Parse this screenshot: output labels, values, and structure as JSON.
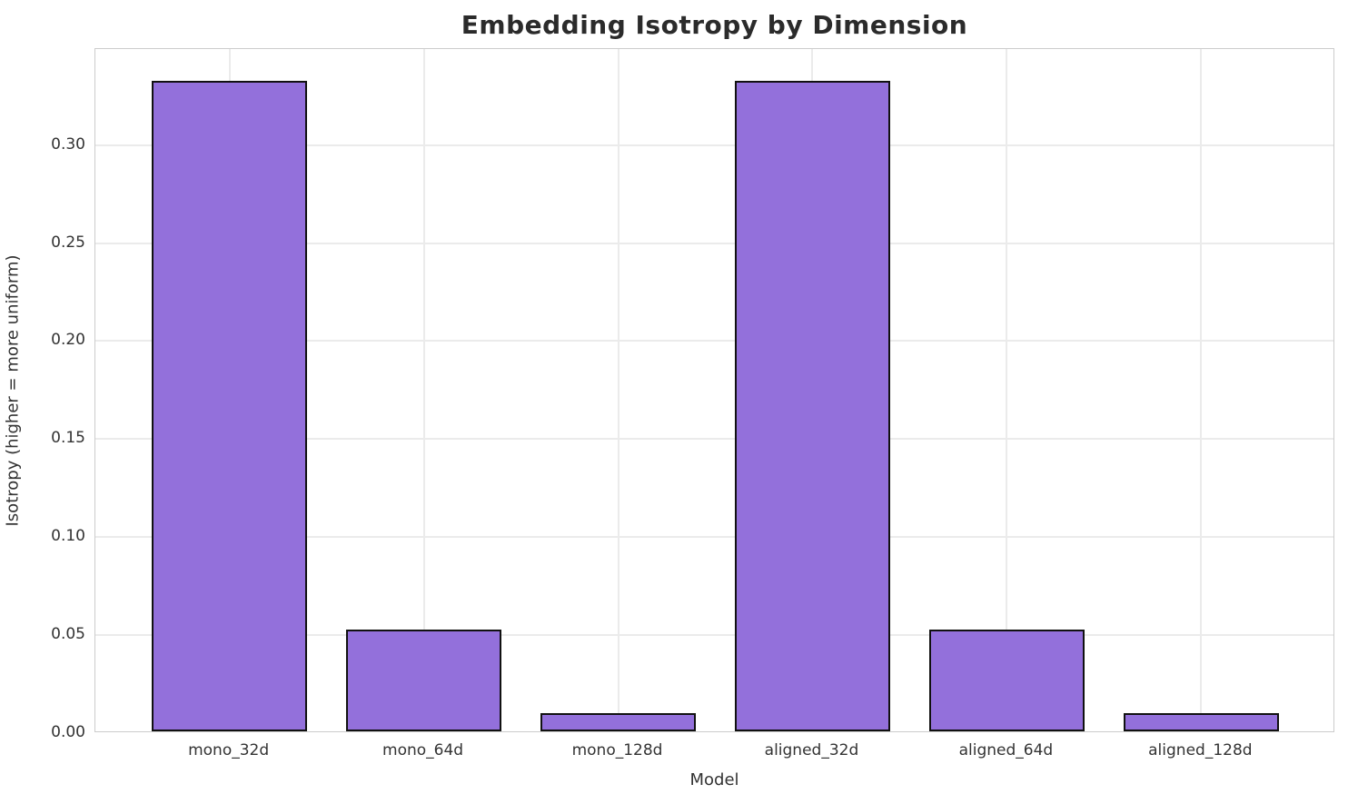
{
  "chart_data": {
    "type": "bar",
    "title": "Embedding Isotropy by Dimension",
    "xlabel": "Model",
    "ylabel": "Isotropy (higher = more uniform)",
    "categories": [
      "mono_32d",
      "mono_64d",
      "mono_128d",
      "aligned_32d",
      "aligned_64d",
      "aligned_128d"
    ],
    "values": [
      0.332,
      0.052,
      0.0095,
      0.332,
      0.052,
      0.0095
    ],
    "ylim": [
      0,
      0.349
    ],
    "yticks": [
      0.0,
      0.05,
      0.1,
      0.15,
      0.2,
      0.25,
      0.3
    ],
    "ytick_labels": [
      "0.00",
      "0.05",
      "0.10",
      "0.15",
      "0.20",
      "0.25",
      "0.30"
    ],
    "grid": "both",
    "legend": "none",
    "bar_color": "#9370DB",
    "bar_edge_color": "#111111",
    "grid_color": "#ebebeb",
    "spine_color": "#cccccc",
    "text_color": "#333333",
    "title_color": "#2b2b2b"
  }
}
